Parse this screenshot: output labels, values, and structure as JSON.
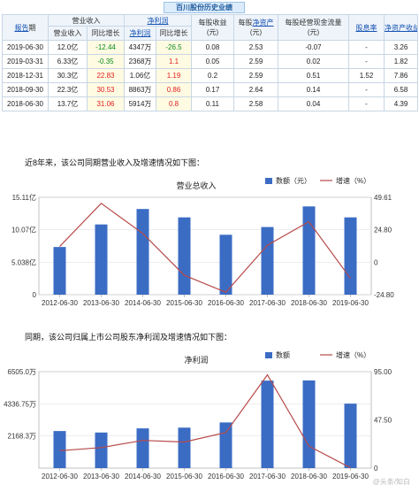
{
  "table": {
    "title": "百川股份历史业绩",
    "headers": {
      "report_period": [
        "报告",
        "期"
      ],
      "revenue_group": "营业收入",
      "profit_group": "净利润",
      "revenue": "营业收入",
      "revenue_yoy": "同比增长",
      "profit": "净利润",
      "profit_yoy": "同比增长",
      "eps": "每股收益\n(元)",
      "navps": [
        "每股",
        "净资产",
        "\n(元)"
      ],
      "cfps": "每股经营现金流量\n(元)",
      "dividend": "股息率",
      "roe": "净资产收益率"
    },
    "rows": [
      {
        "date": "2019-06-30",
        "revenue": "12.0亿",
        "revenue_yoy": "-12.44",
        "profit": "4347万",
        "profit_yoy": "-26.5",
        "eps": "0.08",
        "navps": "2.53",
        "cfps": "-0.07",
        "dividend": "-",
        "roe": "3.26"
      },
      {
        "date": "2019-03-31",
        "revenue": "6.33亿",
        "revenue_yoy": "-0.35",
        "profit": "2368万",
        "profit_yoy": "1.1",
        "eps": "0.05",
        "navps": "2.59",
        "cfps": "0.02",
        "dividend": "-",
        "roe": "1.82"
      },
      {
        "date": "2018-12-31",
        "revenue": "30.3亿",
        "revenue_yoy": "22.83",
        "profit": "1.06亿",
        "profit_yoy": "1.19",
        "eps": "0.2",
        "navps": "2.59",
        "cfps": "0.51",
        "dividend": "1.52",
        "roe": "7.86"
      },
      {
        "date": "2018-09-30",
        "revenue": "22.3亿",
        "revenue_yoy": "30.53",
        "profit": "8863万",
        "profit_yoy": "0.86",
        "eps": "0.17",
        "navps": "2.64",
        "cfps": "0.14",
        "dividend": "-",
        "roe": "6.58"
      },
      {
        "date": "2018-06-30",
        "revenue": "13.7亿",
        "revenue_yoy": "31.06",
        "profit": "5914万",
        "profit_yoy": "0.8",
        "eps": "0.11",
        "navps": "2.58",
        "cfps": "0.04",
        "dividend": "-",
        "roe": "4.39"
      }
    ]
  },
  "sections": {
    "revenue_intro": "近8年来，该公司同期营业收入及增速情况如下图：",
    "profit_intro": "同期，该公司归属上市公司股东净利润及增速情况如下图："
  },
  "watermark": "@头条/知白",
  "colors": {
    "bar": "#3b6cc4",
    "line": "#b84a4a",
    "red": "#e02020",
    "green": "#0a8a1a"
  },
  "chart_data": [
    {
      "type": "bar",
      "title": "营业总收入",
      "legend": {
        "bar": "数额（元）",
        "line": "增速（%）",
        "placement": "top-right"
      },
      "categories": [
        "2012-06-30",
        "2013-06-30",
        "2014-06-30",
        "2015-06-30",
        "2016-06-30",
        "2017-06-30",
        "2018-06-30",
        "2019-06-30"
      ],
      "series": [
        {
          "name": "数额（元）",
          "kind": "bar",
          "axis": "left",
          "values": [
            7.4,
            10.9,
            13.3,
            12.0,
            9.3,
            10.5,
            13.7,
            12.0
          ]
        },
        {
          "name": "增速（%）",
          "kind": "line",
          "axis": "right",
          "values": [
            12,
            45,
            22,
            -10,
            -23,
            13,
            31,
            -12.44
          ]
        }
      ],
      "left_ticks": [
        "15.11亿",
        "10.07亿",
        "5.038亿",
        "0"
      ],
      "right_ticks": [
        "49.61",
        "24.80",
        "0",
        "-24.80"
      ],
      "ylim": [
        0,
        15.11
      ],
      "y2lim": [
        -24.8,
        49.61
      ],
      "grid": true
    },
    {
      "type": "bar",
      "title": "净利润",
      "legend": {
        "bar": "数额",
        "line": "增速（%）",
        "placement": "top-right"
      },
      "categories": [
        "2012-06-30",
        "2013-06-30",
        "2014-06-30",
        "2015-06-30",
        "2016-06-30",
        "2017-06-30",
        "2018-06-30",
        "2019-06-30"
      ],
      "series": [
        {
          "name": "数额",
          "kind": "bar",
          "axis": "left",
          "values": [
            2500,
            2400,
            2680,
            2730,
            3080,
            5900,
            5914,
            4347
          ]
        },
        {
          "name": "增速（%）",
          "kind": "line",
          "axis": "right",
          "values": [
            -5,
            -1,
            8,
            6,
            18,
            91,
            0.8,
            -26.5
          ]
        }
      ],
      "left_ticks": [
        "6505.0万",
        "4336.75万",
        "2168.3万"
      ],
      "right_ticks": [
        "95.00",
        "47.50",
        "0"
      ],
      "ylim": [
        0,
        6505.0
      ],
      "y2lim": [
        -27,
        95
      ],
      "grid": true
    }
  ]
}
